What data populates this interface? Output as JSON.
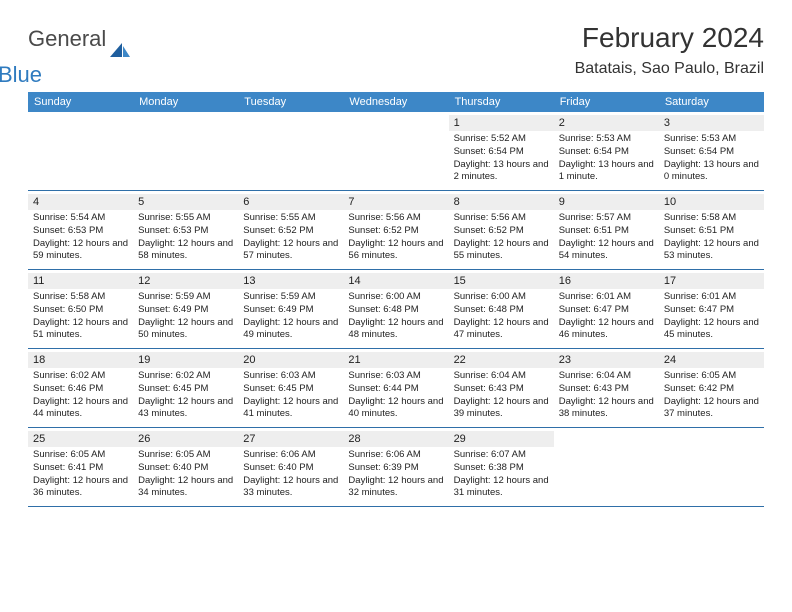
{
  "brand": {
    "general": "General",
    "blue": "Blue"
  },
  "title": "February 2024",
  "location": "Batatais, Sao Paulo, Brazil",
  "colors": {
    "header_bg": "#3d87c7",
    "row_divider": "#2f6fa8",
    "daynum_band": "#eeeeee",
    "text": "#222222",
    "logo_blue": "#2f7bbf"
  },
  "dow": [
    "Sunday",
    "Monday",
    "Tuesday",
    "Wednesday",
    "Thursday",
    "Friday",
    "Saturday"
  ],
  "weeks": [
    [
      null,
      null,
      null,
      null,
      {
        "n": "1",
        "sr": "5:52 AM",
        "ss": "6:54 PM",
        "dl": "13 hours and 2 minutes."
      },
      {
        "n": "2",
        "sr": "5:53 AM",
        "ss": "6:54 PM",
        "dl": "13 hours and 1 minute."
      },
      {
        "n": "3",
        "sr": "5:53 AM",
        "ss": "6:54 PM",
        "dl": "13 hours and 0 minutes."
      }
    ],
    [
      {
        "n": "4",
        "sr": "5:54 AM",
        "ss": "6:53 PM",
        "dl": "12 hours and 59 minutes."
      },
      {
        "n": "5",
        "sr": "5:55 AM",
        "ss": "6:53 PM",
        "dl": "12 hours and 58 minutes."
      },
      {
        "n": "6",
        "sr": "5:55 AM",
        "ss": "6:52 PM",
        "dl": "12 hours and 57 minutes."
      },
      {
        "n": "7",
        "sr": "5:56 AM",
        "ss": "6:52 PM",
        "dl": "12 hours and 56 minutes."
      },
      {
        "n": "8",
        "sr": "5:56 AM",
        "ss": "6:52 PM",
        "dl": "12 hours and 55 minutes."
      },
      {
        "n": "9",
        "sr": "5:57 AM",
        "ss": "6:51 PM",
        "dl": "12 hours and 54 minutes."
      },
      {
        "n": "10",
        "sr": "5:58 AM",
        "ss": "6:51 PM",
        "dl": "12 hours and 53 minutes."
      }
    ],
    [
      {
        "n": "11",
        "sr": "5:58 AM",
        "ss": "6:50 PM",
        "dl": "12 hours and 51 minutes."
      },
      {
        "n": "12",
        "sr": "5:59 AM",
        "ss": "6:49 PM",
        "dl": "12 hours and 50 minutes."
      },
      {
        "n": "13",
        "sr": "5:59 AM",
        "ss": "6:49 PM",
        "dl": "12 hours and 49 minutes."
      },
      {
        "n": "14",
        "sr": "6:00 AM",
        "ss": "6:48 PM",
        "dl": "12 hours and 48 minutes."
      },
      {
        "n": "15",
        "sr": "6:00 AM",
        "ss": "6:48 PM",
        "dl": "12 hours and 47 minutes."
      },
      {
        "n": "16",
        "sr": "6:01 AM",
        "ss": "6:47 PM",
        "dl": "12 hours and 46 minutes."
      },
      {
        "n": "17",
        "sr": "6:01 AM",
        "ss": "6:47 PM",
        "dl": "12 hours and 45 minutes."
      }
    ],
    [
      {
        "n": "18",
        "sr": "6:02 AM",
        "ss": "6:46 PM",
        "dl": "12 hours and 44 minutes."
      },
      {
        "n": "19",
        "sr": "6:02 AM",
        "ss": "6:45 PM",
        "dl": "12 hours and 43 minutes."
      },
      {
        "n": "20",
        "sr": "6:03 AM",
        "ss": "6:45 PM",
        "dl": "12 hours and 41 minutes."
      },
      {
        "n": "21",
        "sr": "6:03 AM",
        "ss": "6:44 PM",
        "dl": "12 hours and 40 minutes."
      },
      {
        "n": "22",
        "sr": "6:04 AM",
        "ss": "6:43 PM",
        "dl": "12 hours and 39 minutes."
      },
      {
        "n": "23",
        "sr": "6:04 AM",
        "ss": "6:43 PM",
        "dl": "12 hours and 38 minutes."
      },
      {
        "n": "24",
        "sr": "6:05 AM",
        "ss": "6:42 PM",
        "dl": "12 hours and 37 minutes."
      }
    ],
    [
      {
        "n": "25",
        "sr": "6:05 AM",
        "ss": "6:41 PM",
        "dl": "12 hours and 36 minutes."
      },
      {
        "n": "26",
        "sr": "6:05 AM",
        "ss": "6:40 PM",
        "dl": "12 hours and 34 minutes."
      },
      {
        "n": "27",
        "sr": "6:06 AM",
        "ss": "6:40 PM",
        "dl": "12 hours and 33 minutes."
      },
      {
        "n": "28",
        "sr": "6:06 AM",
        "ss": "6:39 PM",
        "dl": "12 hours and 32 minutes."
      },
      {
        "n": "29",
        "sr": "6:07 AM",
        "ss": "6:38 PM",
        "dl": "12 hours and 31 minutes."
      },
      null,
      null
    ]
  ],
  "labels": {
    "sunrise": "Sunrise: ",
    "sunset": "Sunset: ",
    "daylight": "Daylight: "
  }
}
